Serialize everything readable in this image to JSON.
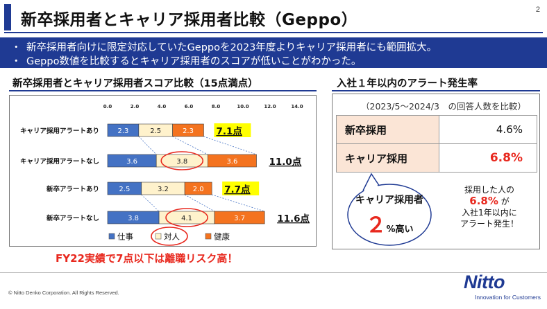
{
  "page": {
    "title": "新卒採用者とキャリア採用者比較（Geppo）",
    "page_number": "2"
  },
  "bullets": [
    "新卒採用者向けに限定対応していたGeppoを2023年度よりキャリア採用者にも範囲拡大。",
    "Geppo数値を比較するとキャリア採用者のスコアが低いことがわかった。"
  ],
  "bullet_marker": "・",
  "left_section": {
    "heading": "新卒採用者とキャリア採用者スコア比較（15点満点）"
  },
  "chart_data": {
    "type": "bar",
    "orientation": "horizontal",
    "stacked": true,
    "xlim": [
      0,
      14
    ],
    "x_ticks": [
      "0.0",
      "2.0",
      "4.0",
      "6.0",
      "8.0",
      "10.0",
      "12.0",
      "14.0"
    ],
    "categories": [
      "キャリア採用アラートあり",
      "キャリア採用アラートなし",
      "新卒アラートあり",
      "新卒アラートなし"
    ],
    "series": [
      {
        "name": "仕事",
        "color": "#4472c4",
        "values": [
          2.3,
          3.6,
          2.5,
          3.8
        ]
      },
      {
        "name": "対人",
        "color": "#fff2cc",
        "values": [
          2.5,
          3.8,
          3.2,
          4.1
        ]
      },
      {
        "name": "健康",
        "color": "#f4731f",
        "values": [
          2.3,
          3.6,
          2.0,
          3.7
        ]
      }
    ],
    "totals": [
      "7.1点",
      "11.0点",
      "7.7点",
      "11.6点"
    ],
    "highlighted_totals": [
      true,
      false,
      true,
      false
    ],
    "circled_segments": [
      [
        1,
        1
      ],
      [
        3,
        1
      ]
    ],
    "circled_legend": "対人",
    "legend_position": "bottom",
    "grid": false
  },
  "fy_note": "FY22実績で7点以下は離職リスク高！",
  "right_section": {
    "heading": "入社１年以内のアラート発生率",
    "period": "（2023/5～2024/3　の回答人数を比較）",
    "rows": [
      {
        "label": "新卒採用",
        "value": "4.6%"
      },
      {
        "label": "キャリア採用",
        "value": "6.8%"
      }
    ],
    "callout": {
      "label": "キャリア採用者",
      "number": "２",
      "suffix": "%高い"
    },
    "note": {
      "line1": "採用した人の",
      "pct": "6.8%",
      "pct_suffix": "が",
      "line3": "入社1年以内に",
      "line4": "アラート発生！"
    }
  },
  "footer": {
    "copyright": "© Nitto Denko Corporation. All Rights Reserved.",
    "logo": "Nitto",
    "tagline": "Innovation for Customers"
  },
  "colors": {
    "accent": "#1f3a93",
    "alert": "#e8281e",
    "highlight": "#ffff00",
    "table_label_bg": "#fbe5d6"
  }
}
